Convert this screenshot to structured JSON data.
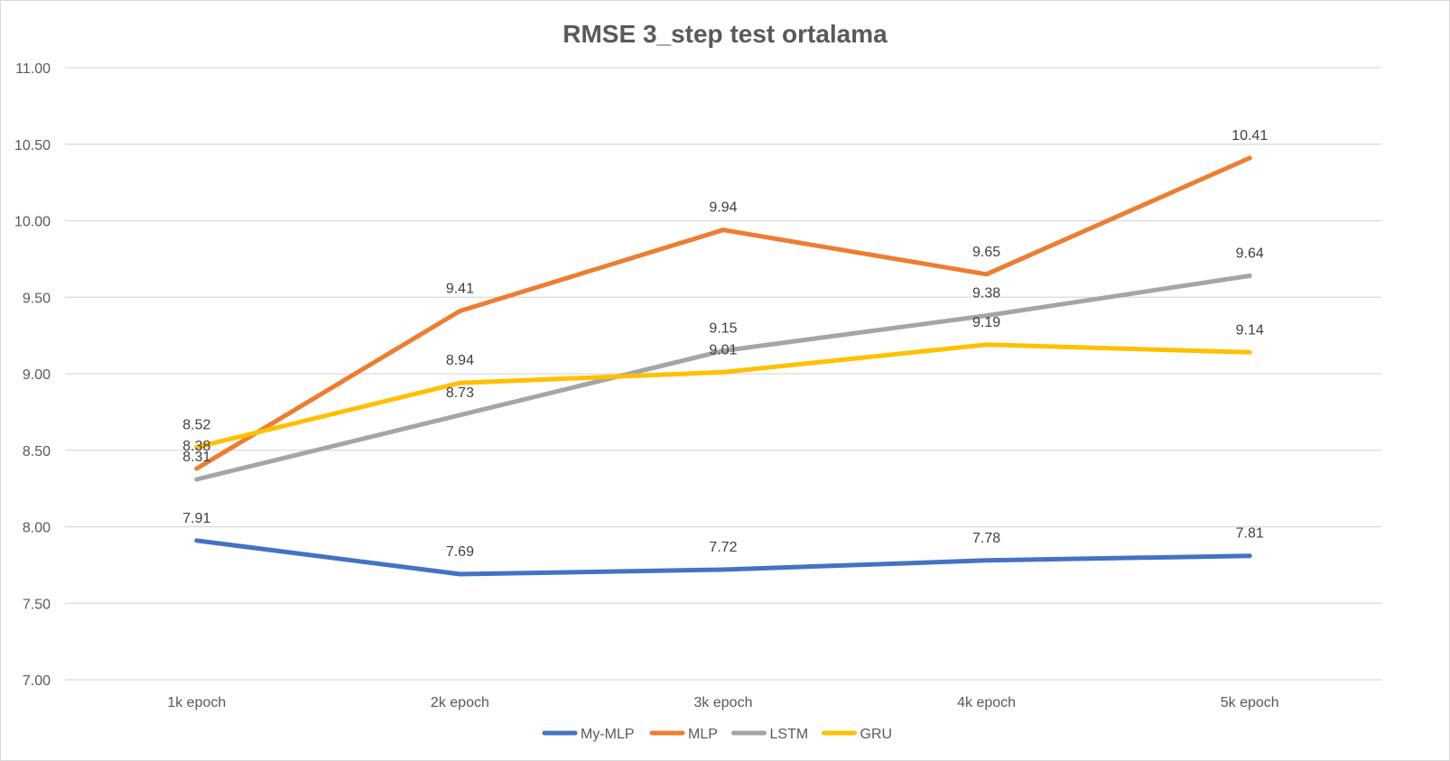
{
  "chart_data": {
    "type": "line",
    "title": "RMSE 3_step test ortalama",
    "xlabel": "",
    "ylabel": "",
    "categories": [
      "1k epoch",
      "2k epoch",
      "3k epoch",
      "4k epoch",
      "5k epoch"
    ],
    "ylim": [
      7.0,
      11.0
    ],
    "yticks": [
      "7.00",
      "7.50",
      "8.00",
      "8.50",
      "9.00",
      "9.50",
      "10.00",
      "10.50",
      "11.00"
    ],
    "grid": true,
    "legend_position": "bottom",
    "series": [
      {
        "name": "My-MLP",
        "color": "#4472c4",
        "values": [
          7.91,
          7.69,
          7.72,
          7.78,
          7.81
        ],
        "labels": [
          "7.91",
          "7.69",
          "7.72",
          "7.78",
          "7.81"
        ]
      },
      {
        "name": "MLP",
        "color": "#ed7d31",
        "values": [
          8.38,
          9.41,
          9.94,
          9.65,
          10.41
        ],
        "labels": [
          "8.38",
          "9.41",
          "9.94",
          "9.65",
          "10.41"
        ]
      },
      {
        "name": "LSTM",
        "color": "#a5a5a5",
        "values": [
          8.31,
          8.73,
          9.15,
          9.38,
          9.64
        ],
        "labels": [
          "8.31",
          "8.73",
          "9.15",
          "9.38",
          "9.64"
        ]
      },
      {
        "name": "GRU",
        "color": "#ffc000",
        "values": [
          8.52,
          8.94,
          9.01,
          9.19,
          9.14
        ],
        "labels": [
          "8.52",
          "8.94",
          "9.01",
          "9.19",
          "9.14"
        ]
      }
    ]
  }
}
